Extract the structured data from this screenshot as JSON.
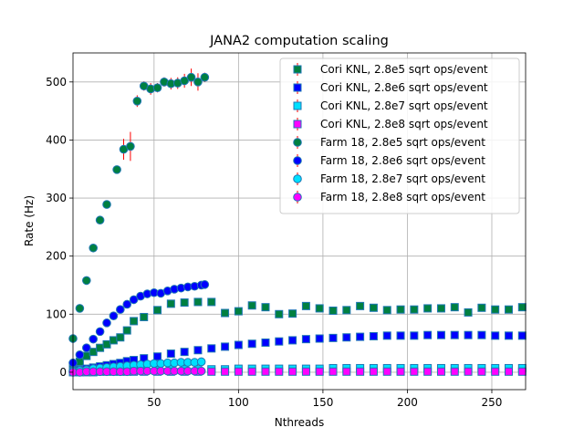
{
  "chart_data": {
    "type": "scatter",
    "title": "JANA2 computation scaling",
    "xlabel": "Nthreads",
    "ylabel": "Rate (Hz)",
    "xlim": [
      2,
      270
    ],
    "ylim": [
      -30,
      550
    ],
    "xticks": [
      50,
      100,
      150,
      200,
      250
    ],
    "yticks": [
      0,
      100,
      200,
      300,
      400,
      500
    ],
    "grid": true,
    "legend_position": "top-right",
    "error_bar_color": "#ff0000",
    "series": [
      {
        "name": "Cori KNL, 2.8e5 sqrt ops/event",
        "marker": "square",
        "face": "#008040",
        "edge": "#1f77b4",
        "x": [
          2,
          6,
          10,
          14,
          18,
          22,
          26,
          30,
          34,
          38,
          44,
          52,
          60,
          68,
          76,
          84,
          92,
          100,
          108,
          116,
          124,
          132,
          140,
          148,
          156,
          164,
          172,
          180,
          188,
          196,
          204,
          212,
          220,
          228,
          236,
          244,
          252,
          260,
          268
        ],
        "y": [
          10,
          18,
          28,
          35,
          42,
          48,
          55,
          60,
          72,
          88,
          95,
          107,
          118,
          120,
          121,
          121,
          102,
          105,
          115,
          112,
          100,
          101,
          114,
          110,
          106,
          107,
          114,
          111,
          107,
          108,
          108,
          110,
          110,
          112,
          103,
          111,
          108,
          108,
          112
        ]
      },
      {
        "name": "Cori KNL, 2.8e6 sqrt ops/event",
        "marker": "square",
        "face": "#0000ff",
        "edge": "#1f77b4",
        "x": [
          2,
          6,
          10,
          14,
          18,
          22,
          26,
          30,
          34,
          38,
          44,
          52,
          60,
          68,
          76,
          84,
          92,
          100,
          108,
          116,
          124,
          132,
          140,
          148,
          156,
          164,
          172,
          180,
          188,
          196,
          204,
          212,
          220,
          228,
          236,
          244,
          252,
          260,
          268
        ],
        "y": [
          2,
          4,
          6,
          8,
          10,
          12,
          14,
          16,
          19,
          21,
          24,
          27,
          32,
          35,
          38,
          41,
          44,
          47,
          49,
          51,
          53,
          55,
          57,
          58,
          59,
          60,
          61,
          62,
          63,
          63,
          63,
          64,
          64,
          64,
          64,
          64,
          63,
          63,
          63
        ]
      },
      {
        "name": "Cori KNL, 2.8e7 sqrt ops/event",
        "marker": "square",
        "face": "#00e0ff",
        "edge": "#1f77b4",
        "x": [
          2,
          6,
          10,
          14,
          18,
          22,
          26,
          30,
          34,
          38,
          44,
          52,
          60,
          68,
          76,
          84,
          92,
          100,
          108,
          116,
          124,
          132,
          140,
          148,
          156,
          164,
          172,
          180,
          188,
          196,
          204,
          212,
          220,
          228,
          236,
          244,
          252,
          260,
          268
        ],
        "y": [
          1,
          1,
          2,
          2,
          2,
          3,
          3,
          3,
          3,
          4,
          4,
          4,
          5,
          5,
          5,
          5,
          5,
          6,
          6,
          6,
          6,
          6,
          6,
          6,
          7,
          7,
          7,
          7,
          7,
          7,
          7,
          7,
          7,
          7,
          7,
          7,
          7,
          7,
          7
        ]
      },
      {
        "name": "Cori KNL, 2.8e8 sqrt ops/event",
        "marker": "square",
        "face": "#ff00ff",
        "edge": "#1f77b4",
        "x": [
          2,
          6,
          10,
          14,
          18,
          22,
          26,
          30,
          34,
          38,
          44,
          52,
          60,
          68,
          76,
          84,
          92,
          100,
          108,
          116,
          124,
          132,
          140,
          148,
          156,
          164,
          172,
          180,
          188,
          196,
          204,
          212,
          220,
          228,
          236,
          244,
          252,
          260,
          268
        ],
        "y": [
          0,
          0,
          0,
          0,
          1,
          1,
          1,
          1,
          1,
          1,
          1,
          1,
          1,
          1,
          1,
          1,
          1,
          1,
          1,
          1,
          1,
          1,
          1,
          1,
          1,
          1,
          1,
          1,
          1,
          1,
          1,
          1,
          1,
          1,
          1,
          1,
          1,
          1,
          1
        ]
      },
      {
        "name": "Farm 18, 2.8e5 sqrt ops/event",
        "marker": "circle",
        "face": "#008040",
        "edge": "#1f77b4",
        "x": [
          2,
          6,
          10,
          14,
          18,
          22,
          28,
          32,
          36,
          40,
          44,
          48,
          52,
          56,
          60,
          64,
          68,
          72,
          76,
          80
        ],
        "y": [
          58,
          110,
          158,
          214,
          262,
          289,
          349,
          384,
          389,
          467,
          493,
          488,
          490,
          500,
          497,
          498,
          502,
          508,
          500,
          508
        ],
        "err": [
          0,
          0,
          0,
          0,
          0,
          0,
          0,
          18,
          25,
          10,
          8,
          10,
          8,
          8,
          10,
          10,
          12,
          15,
          15,
          8
        ]
      },
      {
        "name": "Farm 18, 2.8e6 sqrt ops/event",
        "marker": "circle",
        "face": "#0000ff",
        "edge": "#1f77b4",
        "x": [
          2,
          6,
          10,
          14,
          18,
          22,
          26,
          30,
          34,
          38,
          42,
          46,
          50,
          54,
          58,
          62,
          66,
          70,
          74,
          78,
          80
        ],
        "y": [
          16,
          30,
          42,
          57,
          70,
          85,
          97,
          108,
          117,
          125,
          131,
          135,
          137,
          136,
          140,
          143,
          145,
          147,
          148,
          150,
          151
        ]
      },
      {
        "name": "Farm 18, 2.8e7 sqrt ops/event",
        "marker": "circle",
        "face": "#00e0ff",
        "edge": "#1f77b4",
        "x": [
          2,
          6,
          10,
          14,
          18,
          22,
          26,
          30,
          34,
          38,
          42,
          46,
          50,
          54,
          58,
          62,
          66,
          70,
          74,
          78
        ],
        "y": [
          2,
          3,
          4,
          6,
          7,
          8,
          9,
          10,
          11,
          12,
          13,
          14,
          15,
          15,
          16,
          16,
          17,
          17,
          17,
          18
        ]
      },
      {
        "name": "Farm 18, 2.8e8 sqrt ops/event",
        "marker": "circle",
        "face": "#ff00ff",
        "edge": "#1f77b4",
        "x": [
          2,
          6,
          10,
          14,
          18,
          22,
          26,
          30,
          34,
          38,
          42,
          46,
          50,
          54,
          58,
          62,
          66,
          70,
          74,
          78
        ],
        "y": [
          0,
          0,
          1,
          1,
          1,
          1,
          1,
          1,
          1,
          2,
          2,
          2,
          2,
          2,
          2,
          2,
          2,
          2,
          2,
          2
        ]
      }
    ]
  }
}
